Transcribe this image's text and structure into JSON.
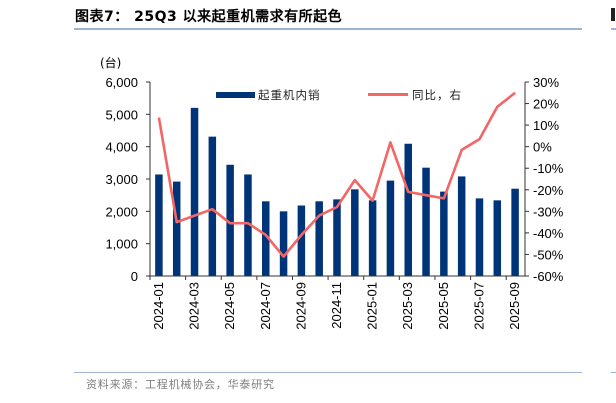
{
  "header": {
    "title": "图表7： 25Q3 以来起重机需求有所起色"
  },
  "footer": {
    "source": "资料来源：工程机械协会，华泰研究"
  },
  "colors": {
    "bar": "#003478",
    "line": "#F46565",
    "rule": "#9fb4d3",
    "source_text": "#7f7f7f"
  },
  "chart_data": {
    "type": "bar+line",
    "title": "25Q3 以来起重机需求有所起色",
    "y_left_unit": "(台)",
    "y_left_ticks": [
      "0",
      "1,000",
      "2,000",
      "3,000",
      "4,000",
      "5,000",
      "6,000"
    ],
    "y_left_range": [
      0,
      6000
    ],
    "y_right_ticks": [
      "-60%",
      "-50%",
      "-40%",
      "-30%",
      "-20%",
      "-10%",
      "0%",
      "10%",
      "20%",
      "30%"
    ],
    "y_right_range": [
      -60,
      30
    ],
    "x_tick_labels": [
      "2024-01",
      "2024-03",
      "2024-05",
      "2024-07",
      "2024-09",
      "2024-11",
      "2025-01",
      "2025-03",
      "2025-05",
      "2025-07",
      "2025-09"
    ],
    "categories": [
      "2024-01",
      "2024-02",
      "2024-03",
      "2024-04",
      "2024-05",
      "2024-06",
      "2024-07",
      "2024-08",
      "2024-09",
      "2024-10",
      "2024-11",
      "2024-12",
      "2025-01",
      "2025-02",
      "2025-03",
      "2025-04",
      "2025-05",
      "2025-06",
      "2025-07",
      "2025-08",
      "2025-09"
    ],
    "series": [
      {
        "name": "起重机内销",
        "type": "bar",
        "axis": "left",
        "values": [
          3140,
          2920,
          5200,
          4310,
          3440,
          3140,
          2310,
          2000,
          2180,
          2310,
          2370,
          2680,
          2340,
          2950,
          4090,
          3350,
          2610,
          3080,
          2400,
          2340,
          2700
        ]
      },
      {
        "name": "同比，右",
        "type": "line",
        "axis": "right",
        "unit": "%",
        "values": [
          13.5,
          -35,
          -32,
          -29,
          -35.5,
          -35.5,
          -41,
          -51,
          -41,
          -32,
          -28,
          -15.5,
          -25,
          2,
          -21,
          -22.5,
          -24,
          -1.5,
          3.5,
          18.5,
          25
        ]
      }
    ],
    "legend": [
      "起重机内销",
      "同比，右"
    ],
    "legend_position": "top",
    "grid": false
  }
}
